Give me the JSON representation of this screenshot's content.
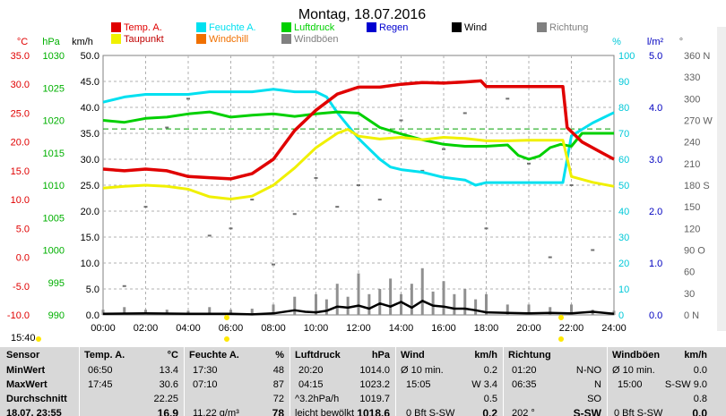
{
  "chart_data": {
    "type": "line",
    "title": "Montag, 18.07.2016",
    "x_ticks": [
      "00:00",
      "02:00",
      "04:00",
      "06:00",
      "08:00",
      "10:00",
      "12:00",
      "14:00",
      "16:00",
      "18:00",
      "20:00",
      "22:00",
      "24:00"
    ],
    "x_range": [
      0,
      24
    ],
    "axes": [
      {
        "unit": "°C",
        "color": "#e00000",
        "ticks": [
          "35.0",
          "30.0",
          "25.0",
          "20.0",
          "15.0",
          "10.0",
          "5.0",
          "0.0",
          "-5.0",
          "-10.0"
        ],
        "range": [
          -10,
          35
        ]
      },
      {
        "unit": "hPa",
        "color": "#00b000",
        "ticks": [
          "1030",
          "1025",
          "1020",
          "1015",
          "1010",
          "1005",
          "1000",
          "995",
          "990"
        ],
        "range": [
          990,
          1030
        ]
      },
      {
        "unit": "km/h",
        "color": "#000000",
        "ticks": [
          "50.0",
          "45.0",
          "40.0",
          "35.0",
          "30.0",
          "25.0",
          "20.0",
          "15.0",
          "10.0",
          "5.0",
          "0.0"
        ],
        "range": [
          0,
          50
        ]
      },
      {
        "unit": "%",
        "color": "#00c8d8",
        "ticks": [
          "100",
          "90",
          "80",
          "70",
          "60",
          "50",
          "40",
          "30",
          "20",
          "10",
          "0"
        ],
        "range": [
          0,
          100
        ]
      },
      {
        "unit": "l/m²",
        "color": "#0000c0",
        "ticks": [
          "5.0",
          "4.0",
          "3.0",
          "2.0",
          "1.0",
          "0.0"
        ],
        "range": [
          0,
          5
        ]
      },
      {
        "unit": "°",
        "color": "#606060",
        "ticks": [
          "360 N",
          "330",
          "300",
          "270 W",
          "240",
          "210",
          "180 S",
          "150",
          "120",
          "90 O",
          "60",
          "30",
          "0 N"
        ],
        "range": [
          0,
          360
        ]
      }
    ],
    "legend": [
      {
        "label": "Temp. A.",
        "color": "#e00000"
      },
      {
        "label": "Feuchte A.",
        "color": "#00e0f0"
      },
      {
        "label": "Luftdruck",
        "color": "#00d000"
      },
      {
        "label": "Regen",
        "color": "#0000d0"
      },
      {
        "label": "Wind",
        "color": "#000000"
      },
      {
        "label": "Richtung",
        "color": "#808080"
      },
      {
        "label": "Taupunkt",
        "color": "#f0f000"
      },
      {
        "label": "Windchill",
        "color": "#f07000"
      },
      {
        "label": "Windböen",
        "color": "#808080"
      }
    ],
    "series": [
      {
        "name": "Temp. A.",
        "axis": "°C",
        "x": [
          0,
          1,
          2,
          3,
          4,
          5,
          6,
          7,
          8,
          9,
          10,
          11,
          12,
          13,
          14,
          15,
          16,
          17,
          17.75,
          18,
          19,
          20,
          21,
          21.6,
          21.8,
          22.5,
          23.5,
          24
        ],
        "values": [
          15.3,
          15.0,
          15.3,
          15.0,
          14.0,
          13.8,
          13.6,
          14.5,
          17.0,
          22.0,
          25.5,
          28.3,
          29.5,
          29.5,
          30.0,
          30.3,
          30.2,
          30.4,
          30.6,
          29.6,
          29.6,
          29.6,
          29.6,
          29.6,
          22.5,
          20.0,
          18.0,
          17.0
        ]
      },
      {
        "name": "Feuchte A.",
        "axis": "%",
        "x": [
          0,
          1,
          2,
          3,
          4,
          5,
          6,
          7,
          8,
          9,
          10,
          10.5,
          11,
          11.5,
          12,
          12.5,
          13,
          13.5,
          14,
          15,
          16,
          17,
          17.5,
          18,
          19,
          20,
          21,
          21.6,
          22,
          23,
          24
        ],
        "values": [
          82,
          84,
          85,
          85,
          85,
          86,
          86,
          86,
          87,
          86,
          86,
          84,
          78,
          73,
          68,
          64,
          60,
          57,
          56,
          55,
          53,
          52,
          50,
          51,
          51,
          51,
          51,
          51,
          69,
          74,
          78
        ]
      },
      {
        "name": "Luftdruck",
        "axis": "hPa",
        "x": [
          0,
          1,
          2,
          3,
          4,
          5,
          6,
          7,
          8,
          9,
          10,
          11,
          12,
          13,
          14,
          15,
          16,
          17,
          18,
          19,
          19.5,
          20,
          20.5,
          21,
          21.5,
          22,
          22.5,
          23,
          24
        ],
        "values": [
          1020,
          1019.7,
          1020.3,
          1020.5,
          1021.0,
          1021.3,
          1020.5,
          1020.8,
          1021.0,
          1020.6,
          1021.0,
          1021.3,
          1021.1,
          1018.9,
          1017.9,
          1017.0,
          1016.3,
          1016.0,
          1016.0,
          1016.2,
          1014.6,
          1014.0,
          1014.5,
          1015.8,
          1016.3,
          1016.0,
          1018.0,
          1018.0,
          1018.0
        ]
      },
      {
        "name": "Taupunkt",
        "axis": "°C",
        "x": [
          0,
          1,
          2,
          3,
          4,
          5,
          6,
          7,
          8,
          9,
          10,
          11,
          11.5,
          12,
          13,
          14,
          15,
          16,
          17,
          18,
          19,
          20,
          21,
          21.6,
          22,
          23,
          24
        ],
        "values": [
          12.0,
          12.3,
          12.5,
          12.3,
          11.8,
          10.5,
          10.1,
          10.6,
          12.5,
          15.5,
          19.0,
          21.5,
          22.2,
          21.0,
          20.5,
          20.8,
          20.4,
          20.8,
          20.6,
          20.2,
          20.2,
          20.3,
          20.3,
          20.3,
          14.0,
          13.0,
          12.3
        ]
      },
      {
        "name": "Wind",
        "axis": "km/h",
        "x": [
          0,
          2,
          4,
          6,
          7,
          8,
          9,
          9.5,
          10,
          10.5,
          11,
          11.5,
          12,
          12.5,
          13,
          13.5,
          14,
          14.5,
          15,
          15.5,
          16,
          16.5,
          17,
          17.5,
          18,
          19,
          20,
          21,
          22,
          23,
          24
        ],
        "values": [
          0.2,
          0.3,
          0.2,
          0.2,
          0.1,
          0.3,
          0.9,
          0.6,
          0.5,
          0.8,
          1.6,
          1.4,
          1.8,
          1.2,
          2.2,
          1.6,
          2.5,
          1.4,
          2.7,
          1.8,
          1.6,
          1.2,
          1.2,
          0.9,
          0.5,
          0.4,
          0.3,
          0.4,
          0.3,
          0.6,
          0.2
        ]
      },
      {
        "name": "Windböen",
        "axis": "km/h",
        "x": [
          0,
          1,
          2,
          3,
          4,
          5,
          6,
          7,
          8,
          9,
          10,
          10.5,
          11,
          11.5,
          12,
          12.5,
          13,
          13.5,
          14,
          14.5,
          15,
          15.5,
          16,
          16.5,
          17,
          17.5,
          18,
          19,
          20,
          21,
          22,
          23,
          24
        ],
        "values": [
          1,
          1.5,
          1,
          1,
          0.8,
          1.5,
          1,
          1.2,
          2,
          3.5,
          4,
          3,
          6,
          3.5,
          8,
          4,
          5,
          7,
          4,
          6,
          9,
          4.5,
          6.5,
          4,
          5,
          3,
          4,
          2,
          2,
          1.5,
          2,
          1,
          0.8
        ]
      },
      {
        "name": "Richtung",
        "axis": "°",
        "x": [
          1,
          2,
          3,
          4,
          5,
          6,
          7,
          8,
          9,
          10,
          11,
          12,
          13,
          14,
          15,
          16,
          17,
          18,
          19,
          20,
          21,
          22,
          23
        ],
        "values": [
          40,
          150,
          260,
          300,
          110,
          120,
          160,
          70,
          140,
          190,
          150,
          180,
          160,
          270,
          200,
          230,
          280,
          120,
          300,
          210,
          80,
          180,
          90
        ]
      }
    ],
    "avg_line": {
      "axis": "°C",
      "value": 22.25,
      "color": "#00a000"
    },
    "left_marker_time": "15:40"
  },
  "stats": {
    "headers": {
      "sensor": "Sensor",
      "temp": "Temp. A.",
      "temp_unit": "°C",
      "hum": "Feuchte A.",
      "hum_unit": "%",
      "press": "Luftdruck",
      "press_unit": "hPa",
      "wind": "Wind",
      "wind_unit": "km/h",
      "dir": "Richtung",
      "gust": "Windböen",
      "gust_unit": "km/h"
    },
    "row_labels": [
      "MinWert",
      "MaxWert",
      "Durchschnitt",
      "18.07. 23:55"
    ],
    "temp": [
      [
        "06:50",
        "13.4"
      ],
      [
        "17:45",
        "30.6"
      ],
      [
        "",
        "22.25"
      ],
      [
        "",
        "16.9"
      ]
    ],
    "hum": [
      [
        "17:30",
        "48"
      ],
      [
        "07:10",
        "87"
      ],
      [
        "",
        "72"
      ],
      [
        "11.22 g/m³",
        "78"
      ]
    ],
    "press": [
      [
        "20:20",
        "1014.0"
      ],
      [
        "04:15",
        "1023.2"
      ],
      [
        "^3.2hPa/h",
        "1019.7"
      ],
      [
        "leicht bewölkt",
        "1018.6"
      ]
    ],
    "wind": [
      [
        "Ø 10 min.",
        "0.2"
      ],
      [
        "15:05",
        "W 3.4"
      ],
      [
        "",
        "0.5"
      ],
      [
        "0 Bft S-SW",
        "0.2"
      ]
    ],
    "dir": [
      [
        "01:20",
        "N-NO"
      ],
      [
        "06:35",
        "N"
      ],
      [
        "",
        "SO"
      ],
      [
        "202 °",
        "S-SW"
      ]
    ],
    "gust": [
      [
        "Ø 10 min.",
        "0.0"
      ],
      [
        "15:00",
        "S-SW 9.0"
      ],
      [
        "",
        "0.8"
      ],
      [
        "0 Bft S-SW",
        "0.0"
      ]
    ]
  }
}
